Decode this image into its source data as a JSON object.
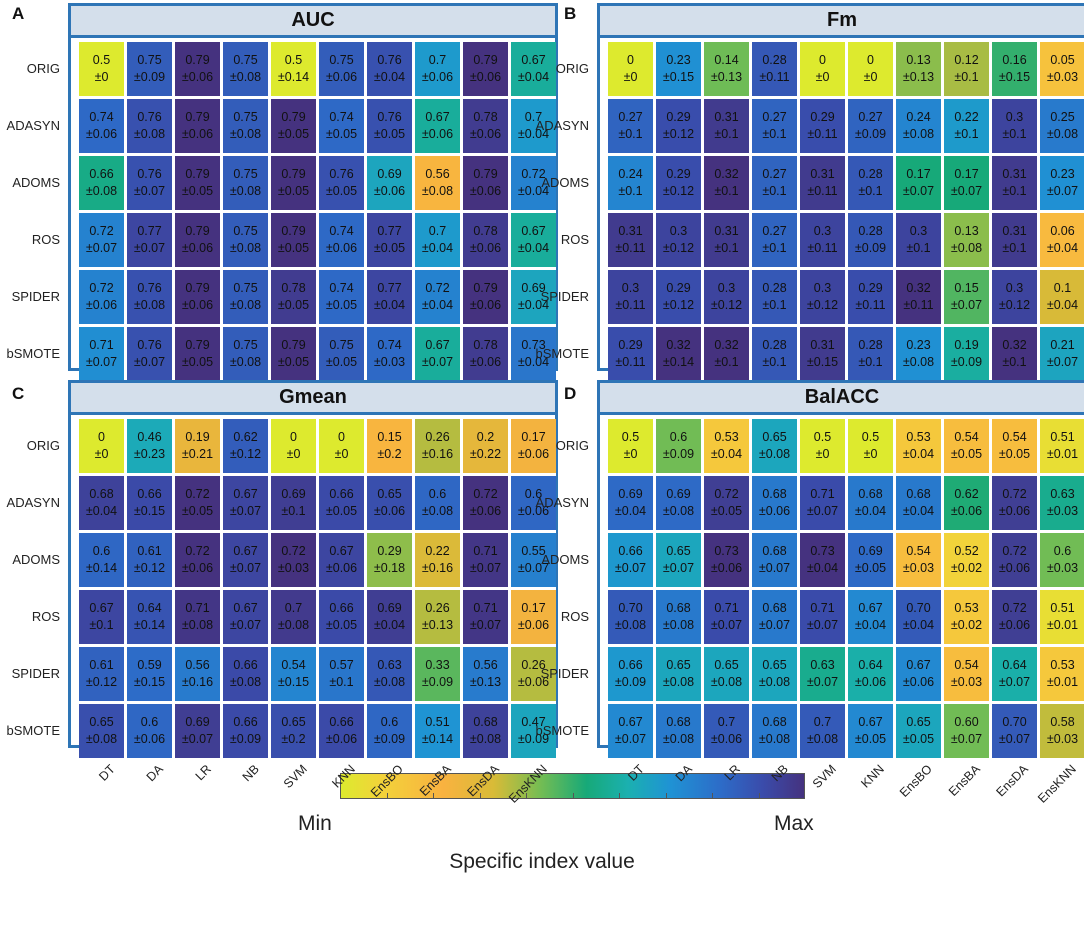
{
  "row_labels": [
    "ORIG",
    "ADASYN",
    "ADOMS",
    "ROS",
    "SPIDER",
    "bSMOTE"
  ],
  "col_labels": [
    "DT",
    "DA",
    "LR",
    "NB",
    "SVM",
    "KNN",
    "EnsBO",
    "EnsBA",
    "EnsDA",
    "EnsKNN"
  ],
  "legend": {
    "min_label": "Min",
    "max_label": "Max",
    "caption": "Specific index value"
  },
  "colors": {
    "border": "#2e75b6",
    "title_bg": "#d4dfeb"
  },
  "chart_data": [
    {
      "type": "heatmap",
      "letter": "A",
      "title": "AUC",
      "values": [
        [
          "0.5",
          "0.75",
          "0.79",
          "0.75",
          "0.5",
          "0.75",
          "0.76",
          "0.7",
          "0.79",
          "0.67"
        ],
        [
          "0.74",
          "0.76",
          "0.79",
          "0.75",
          "0.79",
          "0.74",
          "0.76",
          "0.67",
          "0.78",
          "0.7"
        ],
        [
          "0.66",
          "0.76",
          "0.79",
          "0.75",
          "0.79",
          "0.76",
          "0.69",
          "0.56",
          "0.79",
          "0.72"
        ],
        [
          "0.72",
          "0.77",
          "0.79",
          "0.75",
          "0.79",
          "0.74",
          "0.77",
          "0.7",
          "0.78",
          "0.67"
        ],
        [
          "0.72",
          "0.76",
          "0.79",
          "0.75",
          "0.78",
          "0.74",
          "0.77",
          "0.72",
          "0.79",
          "0.69"
        ],
        [
          "0.71",
          "0.76",
          "0.79",
          "0.75",
          "0.79",
          "0.75",
          "0.74",
          "0.67",
          "0.78",
          "0.73"
        ]
      ],
      "sds": [
        [
          "±0",
          "±0.09",
          "±0.06",
          "±0.08",
          "±0.14",
          "±0.06",
          "±0.04",
          "±0.06",
          "±0.06",
          "±0.04"
        ],
        [
          "±0.06",
          "±0.08",
          "±0.06",
          "±0.08",
          "±0.05",
          "±0.05",
          "±0.05",
          "±0.06",
          "±0.06",
          "±0.04"
        ],
        [
          "±0.08",
          "±0.07",
          "±0.05",
          "±0.08",
          "±0.05",
          "±0.05",
          "±0.06",
          "±0.08",
          "±0.06",
          "±0.04"
        ],
        [
          "±0.07",
          "±0.07",
          "±0.06",
          "±0.08",
          "±0.05",
          "±0.06",
          "±0.05",
          "±0.04",
          "±0.06",
          "±0.04"
        ],
        [
          "±0.06",
          "±0.08",
          "±0.06",
          "±0.08",
          "±0.05",
          "±0.05",
          "±0.04",
          "±0.04",
          "±0.06",
          "±0.04"
        ],
        [
          "±0.07",
          "±0.07",
          "±0.05",
          "±0.08",
          "±0.05",
          "±0.05",
          "±0.03",
          "±0.07",
          "±0.06",
          "±0.04"
        ]
      ]
    },
    {
      "type": "heatmap",
      "letter": "B",
      "title": "Fm",
      "values": [
        [
          "0",
          "0.23",
          "0.14",
          "0.28",
          "0",
          "0",
          "0.13",
          "0.12",
          "0.16",
          "0.05"
        ],
        [
          "0.27",
          "0.29",
          "0.31",
          "0.27",
          "0.29",
          "0.27",
          "0.24",
          "0.22",
          "0.3",
          "0.25"
        ],
        [
          "0.24",
          "0.29",
          "0.32",
          "0.27",
          "0.31",
          "0.28",
          "0.17",
          "0.17",
          "0.31",
          "0.23"
        ],
        [
          "0.31",
          "0.3",
          "0.31",
          "0.27",
          "0.3",
          "0.28",
          "0.3",
          "0.13",
          "0.31",
          "0.06"
        ],
        [
          "0.3",
          "0.29",
          "0.3",
          "0.28",
          "0.3",
          "0.29",
          "0.32",
          "0.15",
          "0.3",
          "0.1"
        ],
        [
          "0.29",
          "0.32",
          "0.32",
          "0.28",
          "0.31",
          "0.28",
          "0.23",
          "0.19",
          "0.32",
          "0.21"
        ]
      ],
      "sds": [
        [
          "±0",
          "±0.15",
          "±0.13",
          "±0.11",
          "±0",
          "±0",
          "±0.13",
          "±0.1",
          "±0.15",
          "±0.03"
        ],
        [
          "±0.1",
          "±0.12",
          "±0.1",
          "±0.1",
          "±0.11",
          "±0.09",
          "±0.08",
          "±0.1",
          "±0.1",
          "±0.08"
        ],
        [
          "±0.1",
          "±0.12",
          "±0.1",
          "±0.1",
          "±0.11",
          "±0.1",
          "±0.07",
          "±0.07",
          "±0.1",
          "±0.07"
        ],
        [
          "±0.11",
          "±0.12",
          "±0.1",
          "±0.1",
          "±0.11",
          "±0.09",
          "±0.1",
          "±0.08",
          "±0.1",
          "±0.04"
        ],
        [
          "±0.11",
          "±0.12",
          "±0.12",
          "±0.1",
          "±0.12",
          "±0.11",
          "±0.11",
          "±0.07",
          "±0.12",
          "±0.04"
        ],
        [
          "±0.11",
          "±0.14",
          "±0.1",
          "±0.1",
          "±0.15",
          "±0.1",
          "±0.08",
          "±0.09",
          "±0.1",
          "±0.07"
        ]
      ]
    },
    {
      "type": "heatmap",
      "letter": "C",
      "title": "Gmean",
      "values": [
        [
          "0",
          "0.46",
          "0.19",
          "0.62",
          "0",
          "0",
          "0.15",
          "0.26",
          "0.2",
          "0.17"
        ],
        [
          "0.68",
          "0.66",
          "0.72",
          "0.67",
          "0.69",
          "0.66",
          "0.65",
          "0.6",
          "0.72",
          "0.6"
        ],
        [
          "0.6",
          "0.61",
          "0.72",
          "0.67",
          "0.72",
          "0.67",
          "0.29",
          "0.22",
          "0.71",
          "0.55"
        ],
        [
          "0.67",
          "0.64",
          "0.71",
          "0.67",
          "0.7",
          "0.66",
          "0.69",
          "0.26",
          "0.71",
          "0.17"
        ],
        [
          "0.61",
          "0.59",
          "0.56",
          "0.66",
          "0.54",
          "0.57",
          "0.63",
          "0.33",
          "0.56",
          "0.26"
        ],
        [
          "0.65",
          "0.6",
          "0.69",
          "0.66",
          "0.65",
          "0.66",
          "0.6",
          "0.51",
          "0.68",
          "0.47"
        ]
      ],
      "sds": [
        [
          "±0",
          "±0.23",
          "±0.21",
          "±0.12",
          "±0",
          "±0",
          "±0.2",
          "±0.16",
          "±0.22",
          "±0.06"
        ],
        [
          "±0.04",
          "±0.15",
          "±0.05",
          "±0.07",
          "±0.1",
          "±0.05",
          "±0.06",
          "±0.08",
          "±0.06",
          "±0.06"
        ],
        [
          "±0.14",
          "±0.12",
          "±0.06",
          "±0.07",
          "±0.03",
          "±0.06",
          "±0.18",
          "±0.16",
          "±0.07",
          "±0.07"
        ],
        [
          "±0.1",
          "±0.14",
          "±0.08",
          "±0.07",
          "±0.08",
          "±0.05",
          "±0.04",
          "±0.13",
          "±0.07",
          "±0.06"
        ],
        [
          "±0.12",
          "±0.15",
          "±0.16",
          "±0.08",
          "±0.15",
          "±0.1",
          "±0.08",
          "±0.09",
          "±0.13",
          "±0.06"
        ],
        [
          "±0.08",
          "±0.06",
          "±0.07",
          "±0.09",
          "±0.2",
          "±0.06",
          "±0.09",
          "±0.14",
          "±0.08",
          "±0.09"
        ]
      ]
    },
    {
      "type": "heatmap",
      "letter": "D",
      "title": "BalACC",
      "values": [
        [
          "0.5",
          "0.6",
          "0.53",
          "0.65",
          "0.5",
          "0.5",
          "0.53",
          "0.54",
          "0.54",
          "0.51"
        ],
        [
          "0.69",
          "0.69",
          "0.72",
          "0.68",
          "0.71",
          "0.68",
          "0.68",
          "0.62",
          "0.72",
          "0.63"
        ],
        [
          "0.66",
          "0.65",
          "0.73",
          "0.68",
          "0.73",
          "0.69",
          "0.54",
          "0.52",
          "0.72",
          "0.6"
        ],
        [
          "0.70",
          "0.68",
          "0.71",
          "0.68",
          "0.71",
          "0.67",
          "0.70",
          "0.53",
          "0.72",
          "0.51"
        ],
        [
          "0.66",
          "0.65",
          "0.65",
          "0.65",
          "0.63",
          "0.64",
          "0.67",
          "0.54",
          "0.64",
          "0.53"
        ],
        [
          "0.67",
          "0.68",
          "0.7",
          "0.68",
          "0.7",
          "0.67",
          "0.65",
          "0.60",
          "0.70",
          "0.58"
        ]
      ],
      "sds": [
        [
          "±0",
          "±0.09",
          "±0.04",
          "±0.08",
          "±0",
          "±0",
          "±0.04",
          "±0.05",
          "±0.05",
          "±0.01"
        ],
        [
          "±0.04",
          "±0.08",
          "±0.05",
          "±0.06",
          "±0.07",
          "±0.04",
          "±0.04",
          "±0.06",
          "±0.06",
          "±0.03"
        ],
        [
          "±0.07",
          "±0.07",
          "±0.06",
          "±0.07",
          "±0.04",
          "±0.05",
          "±0.03",
          "±0.02",
          "±0.06",
          "±0.03"
        ],
        [
          "±0.08",
          "±0.08",
          "±0.07",
          "±0.07",
          "±0.07",
          "±0.04",
          "±0.04",
          "±0.02",
          "±0.06",
          "±0.01"
        ],
        [
          "±0.09",
          "±0.08",
          "±0.08",
          "±0.08",
          "±0.07",
          "±0.06",
          "±0.06",
          "±0.03",
          "±0.07",
          "±0.01"
        ],
        [
          "±0.07",
          "±0.08",
          "±0.06",
          "±0.08",
          "±0.08",
          "±0.05",
          "±0.05",
          "±0.07",
          "±0.07",
          "±0.03"
        ]
      ]
    }
  ]
}
